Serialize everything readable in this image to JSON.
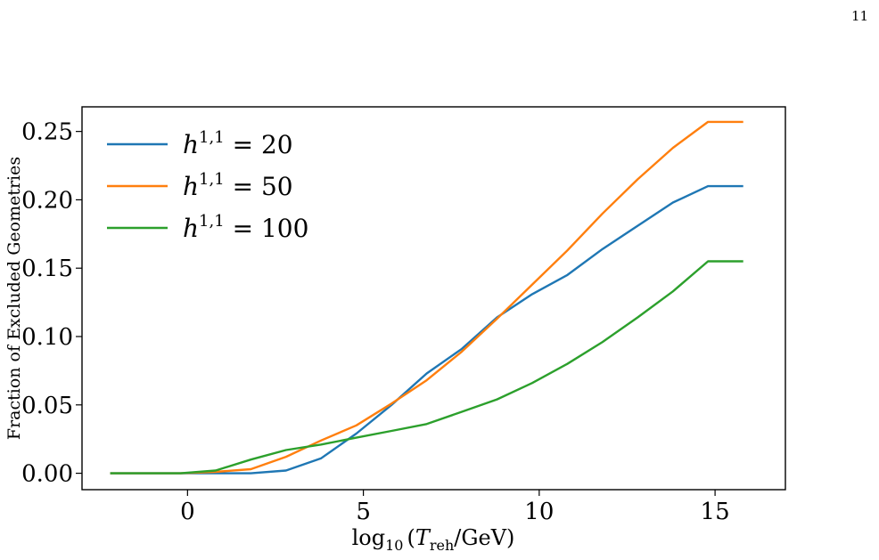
{
  "page_number": "11",
  "chart_data": {
    "type": "line",
    "title": "",
    "xlabel": "log10(T_reh/GeV)",
    "ylabel": "Fraction of Excluded Geometries",
    "xlim": [
      -3,
      17
    ],
    "ylim": [
      -0.012,
      0.268
    ],
    "x_ticks": [
      0,
      5,
      10,
      15
    ],
    "x_tick_labels": [
      "0",
      "5",
      "10",
      "15"
    ],
    "y_ticks": [
      0.0,
      0.05,
      0.1,
      0.15,
      0.2,
      0.25
    ],
    "y_tick_labels": [
      "0.00",
      "0.05",
      "0.10",
      "0.15",
      "0.20",
      "0.25"
    ],
    "grid": false,
    "legend_position": "upper-left",
    "x": [
      -2.2,
      -0.2,
      0.8,
      1.8,
      2.8,
      3.8,
      4.8,
      5.8,
      6.8,
      7.8,
      8.8,
      9.8,
      10.8,
      11.8,
      12.8,
      13.8,
      14.8,
      15.8
    ],
    "series": [
      {
        "name": "h^{1,1} = 20",
        "label_base": "h",
        "label_sup": "1,1",
        "label_rest": " = 20",
        "color": "#1f77b4",
        "values": [
          0.0,
          0.0,
          0.0,
          0.0,
          0.002,
          0.011,
          0.029,
          0.05,
          0.073,
          0.091,
          0.114,
          0.131,
          0.145,
          0.164,
          0.181,
          0.198,
          0.21,
          0.21
        ]
      },
      {
        "name": "h^{1,1} = 50",
        "label_base": "h",
        "label_sup": "1,1",
        "label_rest": " = 50",
        "color": "#ff7f0e",
        "values": [
          0.0,
          0.0,
          0.001,
          0.003,
          0.012,
          0.024,
          0.035,
          0.051,
          0.068,
          0.089,
          0.113,
          0.138,
          0.163,
          0.19,
          0.215,
          0.238,
          0.257,
          0.257
        ]
      },
      {
        "name": "h^{1,1} = 100",
        "label_base": "h",
        "label_sup": "1,1",
        "label_rest": " = 100",
        "color": "#2ca02c",
        "values": [
          0.0,
          0.0,
          0.002,
          0.01,
          0.017,
          0.021,
          0.026,
          0.031,
          0.036,
          0.045,
          0.054,
          0.066,
          0.08,
          0.096,
          0.114,
          0.133,
          0.155,
          0.155
        ]
      }
    ]
  }
}
